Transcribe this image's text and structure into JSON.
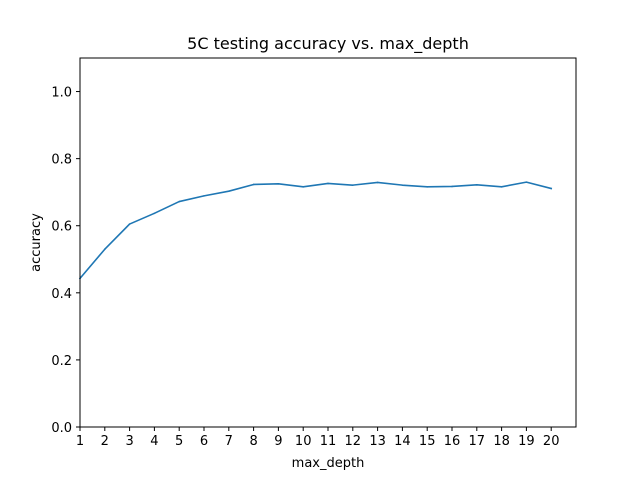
{
  "chart_data": {
    "type": "line",
    "title": "5C testing accuracy vs. max_depth",
    "xlabel": "max_depth",
    "ylabel": "accuracy",
    "xlim": [
      1,
      21
    ],
    "ylim": [
      0.0,
      1.1
    ],
    "x_ticks": [
      1,
      2,
      3,
      4,
      5,
      6,
      7,
      8,
      9,
      10,
      11,
      12,
      13,
      14,
      15,
      16,
      17,
      18,
      19,
      20
    ],
    "y_ticks": [
      "0.0",
      "0.2",
      "0.4",
      "0.6",
      "0.8",
      "1.0"
    ],
    "grid": false,
    "legend": "none",
    "series": [
      {
        "color": "#1f77b4",
        "x": [
          1,
          2,
          3,
          4,
          5,
          6,
          7,
          8,
          9,
          10,
          11,
          12,
          13,
          14,
          15,
          16,
          17,
          18,
          19,
          20
        ],
        "y": [
          0.443,
          0.53,
          0.605,
          0.637,
          0.672,
          0.689,
          0.703,
          0.723,
          0.725,
          0.716,
          0.726,
          0.721,
          0.729,
          0.721,
          0.716,
          0.717,
          0.722,
          0.716,
          0.73,
          0.711
        ]
      }
    ]
  }
}
